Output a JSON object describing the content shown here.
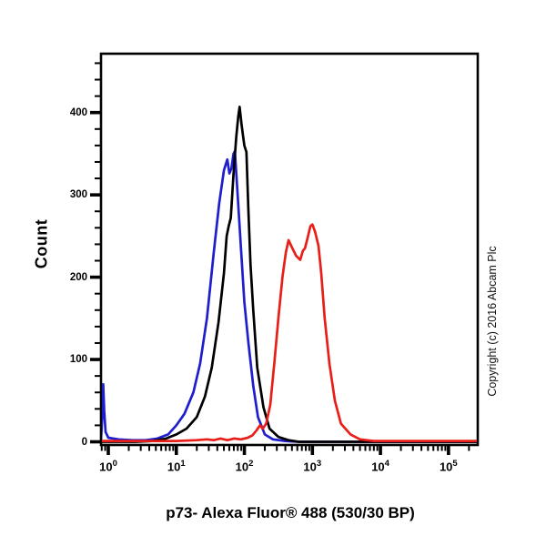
{
  "chart": {
    "ylabel": "Count",
    "xlabel": "p73- Alexa Fluor® 488 (530/30 BP)",
    "copyright": "Copyright (c) 2016 Abcam Plc"
  },
  "colors": {
    "frame": "#000000",
    "blue_series": "#1e1ecd",
    "black_series": "#000000",
    "red_series": "#e81e19",
    "background": "#ffffff"
  },
  "chart_data": {
    "type": "line",
    "subtype": "flow-cytometry-histogram-overlay",
    "title": "",
    "xlabel": "p73- Alexa Fluor® 488 (530/30 BP)",
    "ylabel": "Count",
    "legend": "none",
    "grid": false,
    "x_axis": {
      "scale": "log10",
      "log_range": [
        -0.107,
        5.43
      ],
      "major_ticks": [
        {
          "base": "10",
          "exp": "0",
          "log": 0
        },
        {
          "base": "10",
          "exp": "1",
          "log": 1
        },
        {
          "base": "10",
          "exp": "2",
          "log": 2
        },
        {
          "base": "10",
          "exp": "3",
          "log": 3
        },
        {
          "base": "10",
          "exp": "4",
          "log": 4
        },
        {
          "base": "10",
          "exp": "5",
          "log": 5
        }
      ],
      "minor_tick_logs": [
        -0.097,
        -0.046,
        0.301,
        0.477,
        0.602,
        0.699,
        0.778,
        0.845,
        0.903,
        0.954,
        1.301,
        1.477,
        1.602,
        1.699,
        1.778,
        1.845,
        1.903,
        1.954,
        2.301,
        2.477,
        2.602,
        2.699,
        2.778,
        2.845,
        2.903,
        2.954,
        3.301,
        3.477,
        3.602,
        3.699,
        3.778,
        3.845,
        3.903,
        3.954,
        4.301,
        4.477,
        4.602,
        4.699,
        4.778,
        4.845,
        4.903,
        4.954,
        5.301
      ]
    },
    "y_axis": {
      "range": [
        0,
        470
      ],
      "major_ticks": [
        0,
        100,
        200,
        300,
        400
      ],
      "minor_ticks": [
        20,
        40,
        60,
        80,
        120,
        140,
        160,
        180,
        220,
        240,
        260,
        280,
        320,
        340,
        360,
        380,
        420,
        440,
        460
      ]
    },
    "series": [
      {
        "name": "blue-curve",
        "color_key": "blue_series",
        "peak_note": "edge spike ~70 at axis minimum; bimodal apex ~343 and ~352 near x=6e1",
        "points": [
          [
            -0.107,
            2
          ],
          [
            -0.09,
            28
          ],
          [
            -0.075,
            70
          ],
          [
            -0.06,
            38
          ],
          [
            -0.04,
            12
          ],
          [
            0.0,
            5
          ],
          [
            0.15,
            3
          ],
          [
            0.35,
            2
          ],
          [
            0.55,
            2
          ],
          [
            0.72,
            4
          ],
          [
            0.88,
            9
          ],
          [
            1.0,
            20
          ],
          [
            1.12,
            34
          ],
          [
            1.25,
            60
          ],
          [
            1.35,
            95
          ],
          [
            1.45,
            150
          ],
          [
            1.55,
            230
          ],
          [
            1.63,
            290
          ],
          [
            1.7,
            330
          ],
          [
            1.75,
            343
          ],
          [
            1.78,
            326
          ],
          [
            1.81,
            332
          ],
          [
            1.84,
            350
          ],
          [
            1.86,
            353
          ],
          [
            1.89,
            315
          ],
          [
            1.95,
            235
          ],
          [
            2.0,
            170
          ],
          [
            2.06,
            120
          ],
          [
            2.13,
            68
          ],
          [
            2.2,
            30
          ],
          [
            2.3,
            9
          ],
          [
            2.42,
            3
          ],
          [
            2.6,
            1
          ],
          [
            2.8,
            0
          ],
          [
            3.5,
            0
          ],
          [
            4.5,
            0
          ],
          [
            5.42,
            0
          ]
        ]
      },
      {
        "name": "black-curve",
        "color_key": "black_series",
        "peak_note": "apex ~405 at x~8.5e1",
        "points": [
          [
            -0.107,
            0
          ],
          [
            0.4,
            0
          ],
          [
            0.65,
            1
          ],
          [
            0.85,
            4
          ],
          [
            1.0,
            9
          ],
          [
            1.15,
            16
          ],
          [
            1.3,
            30
          ],
          [
            1.42,
            55
          ],
          [
            1.52,
            90
          ],
          [
            1.62,
            145
          ],
          [
            1.7,
            205
          ],
          [
            1.74,
            250
          ],
          [
            1.77,
            262
          ],
          [
            1.8,
            272
          ],
          [
            1.84,
            325
          ],
          [
            1.88,
            370
          ],
          [
            1.91,
            395
          ],
          [
            1.93,
            407
          ],
          [
            1.96,
            385
          ],
          [
            2.0,
            360
          ],
          [
            2.03,
            352
          ],
          [
            2.06,
            280
          ],
          [
            2.09,
            215
          ],
          [
            2.13,
            160
          ],
          [
            2.19,
            90
          ],
          [
            2.28,
            42
          ],
          [
            2.37,
            16
          ],
          [
            2.5,
            6
          ],
          [
            2.65,
            2
          ],
          [
            2.8,
            0
          ],
          [
            3.5,
            0
          ],
          [
            4.5,
            0
          ],
          [
            5.42,
            0
          ]
        ]
      },
      {
        "name": "red-curve",
        "color_key": "red_series",
        "peak_note": "bimodal: ~245 at x~4.5e2 and ~264 at x~1e3",
        "points": [
          [
            -0.107,
            1
          ],
          [
            0.5,
            1
          ],
          [
            1.0,
            1
          ],
          [
            1.3,
            2
          ],
          [
            1.45,
            3
          ],
          [
            1.55,
            2
          ],
          [
            1.65,
            4
          ],
          [
            1.75,
            2
          ],
          [
            1.85,
            4
          ],
          [
            1.95,
            3
          ],
          [
            2.05,
            5
          ],
          [
            2.12,
            8
          ],
          [
            2.18,
            14
          ],
          [
            2.23,
            20
          ],
          [
            2.27,
            16
          ],
          [
            2.32,
            22
          ],
          [
            2.38,
            45
          ],
          [
            2.44,
            95
          ],
          [
            2.5,
            150
          ],
          [
            2.56,
            200
          ],
          [
            2.61,
            230
          ],
          [
            2.65,
            245
          ],
          [
            2.7,
            236
          ],
          [
            2.76,
            226
          ],
          [
            2.82,
            221
          ],
          [
            2.86,
            232
          ],
          [
            2.89,
            235
          ],
          [
            2.93,
            248
          ],
          [
            2.97,
            262
          ],
          [
            3.0,
            264
          ],
          [
            3.04,
            255
          ],
          [
            3.09,
            238
          ],
          [
            3.13,
            205
          ],
          [
            3.18,
            150
          ],
          [
            3.25,
            95
          ],
          [
            3.33,
            50
          ],
          [
            3.42,
            22
          ],
          [
            3.56,
            9
          ],
          [
            3.7,
            3
          ],
          [
            3.9,
            1
          ],
          [
            4.1,
            1
          ],
          [
            4.6,
            1
          ],
          [
            5.42,
            1
          ]
        ]
      }
    ]
  }
}
